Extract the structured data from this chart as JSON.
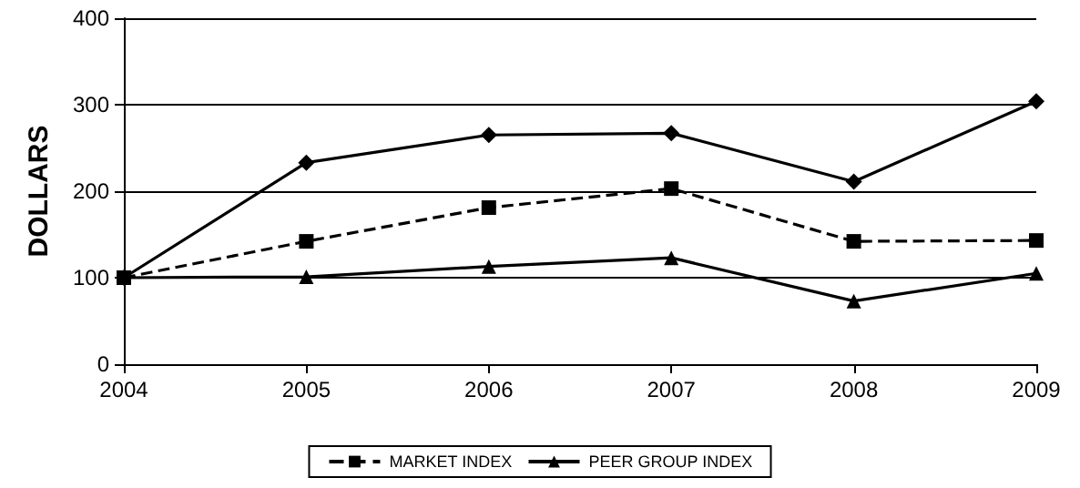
{
  "chart_data": {
    "type": "line",
    "ylabel": "DOLLARS",
    "categories": [
      "2004",
      "2005",
      "2006",
      "2007",
      "2008",
      "2009"
    ],
    "series": [
      {
        "color": "#000000",
        "marker": "diamond",
        "line_style": "solid",
        "values": [
          100,
          233,
          265,
          267,
          211,
          304
        ]
      },
      {
        "name": "MARKET INDEX",
        "color": "#000000",
        "marker": "square",
        "line_style": "dashed",
        "values": [
          100,
          142,
          181,
          203,
          142,
          143
        ]
      },
      {
        "name": "PEER GROUP INDEX",
        "color": "#000000",
        "marker": "triangle",
        "line_style": "solid",
        "values": [
          100,
          101,
          113,
          123,
          73,
          105
        ]
      }
    ],
    "ylim": [
      0,
      400
    ],
    "yticks": [
      0,
      100,
      200,
      300,
      400
    ],
    "grid": "y",
    "legend": "bottom"
  }
}
